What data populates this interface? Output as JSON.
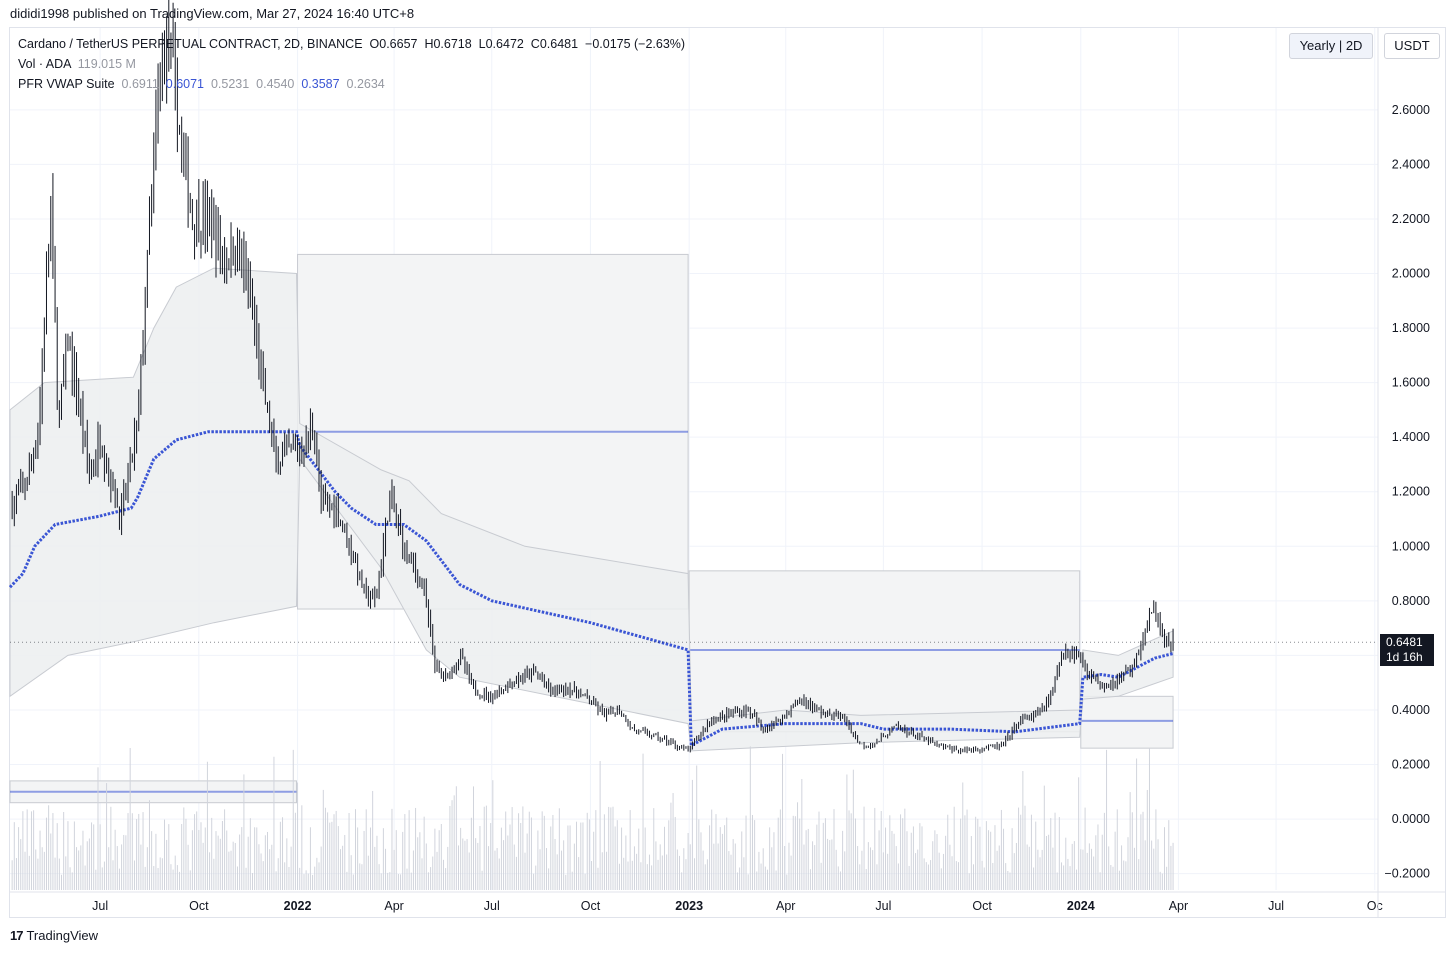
{
  "header": {
    "published_by": "dididi1998 published on TradingView.com, Mar 27, 2024 16:40 UTC+8"
  },
  "legend": {
    "symbol_line": "Cardano / TetherUS PERPETUAL CONTRACT, 2D, BINANCE",
    "ohlc": {
      "open_label": "O",
      "open": "0.6657",
      "high_label": "H",
      "high": "0.6718",
      "low_label": "L",
      "low": "0.6472",
      "close_label": "C",
      "close": "0.6481",
      "change": "−0.0175 (−2.63%)"
    },
    "volume": {
      "label": "Vol · ADA",
      "value": "119.015 M"
    },
    "indicator": {
      "label": "PFR VWAP Suite",
      "v1": "0.6911",
      "v2": "0.6071",
      "v3": "0.5231",
      "v4": "0.4540",
      "v5": "0.3587",
      "v6": "0.2634"
    }
  },
  "controls": {
    "period_button": "Yearly | 2D",
    "currency_button": "USDT"
  },
  "price_badge": {
    "price": "0.6481",
    "countdown": "1d 16h"
  },
  "footer": {
    "logo_text": "17",
    "brand": "TradingView"
  },
  "colors": {
    "vwap_line": "#3a55d4",
    "band_fill": "#eceef0",
    "box_fill": "#f3f4f5",
    "candle": "#131722",
    "volume": "#d1d4dc",
    "grid": "#f0f3fa"
  },
  "chart_data": {
    "type": "candlestick",
    "title": "Cardano / TetherUS PERPETUAL CONTRACT, 2D, BINANCE",
    "y_axis": {
      "ticks": [
        "2.6000",
        "2.4000",
        "2.2000",
        "2.0000",
        "1.8000",
        "1.6000",
        "1.4000",
        "1.2000",
        "1.0000",
        "0.8000",
        "0.6000",
        "0.4000",
        "0.2000",
        "0.0000",
        "−0.2000"
      ],
      "range": [
        -0.26,
        2.9
      ]
    },
    "x_axis": {
      "ticks": [
        {
          "label": "Jul",
          "date": "2021-07-01",
          "bold": false
        },
        {
          "label": "Oct",
          "date": "2021-10-01",
          "bold": false
        },
        {
          "label": "2022",
          "date": "2022-01-01",
          "bold": true
        },
        {
          "label": "Apr",
          "date": "2022-04-01",
          "bold": false
        },
        {
          "label": "Jul",
          "date": "2022-07-01",
          "bold": false
        },
        {
          "label": "Oct",
          "date": "2022-10-01",
          "bold": false
        },
        {
          "label": "2023",
          "date": "2023-01-01",
          "bold": true
        },
        {
          "label": "Apr",
          "date": "2023-04-01",
          "bold": false
        },
        {
          "label": "Jul",
          "date": "2023-07-01",
          "bold": false
        },
        {
          "label": "Oct",
          "date": "2023-10-01",
          "bold": false
        },
        {
          "label": "2024",
          "date": "2024-01-01",
          "bold": true
        },
        {
          "label": "Apr",
          "date": "2024-04-01",
          "bold": false
        },
        {
          "label": "Jul",
          "date": "2024-07-01",
          "bold": false
        },
        {
          "label": "Oc",
          "date": "2024-10-01",
          "bold": false
        }
      ],
      "range": [
        "2021-04-08",
        "2024-10-04"
      ]
    },
    "price_path": [
      [
        "2021-04-10",
        1.15
      ],
      [
        "2021-04-25",
        1.25
      ],
      [
        "2021-05-05",
        1.45
      ],
      [
        "2021-05-16",
        2.25
      ],
      [
        "2021-05-23",
        1.45
      ],
      [
        "2021-06-01",
        1.75
      ],
      [
        "2021-06-10",
        1.55
      ],
      [
        "2021-06-22",
        1.25
      ],
      [
        "2021-07-01",
        1.4
      ],
      [
        "2021-07-20",
        1.1
      ],
      [
        "2021-08-05",
        1.45
      ],
      [
        "2021-08-15",
        2.1
      ],
      [
        "2021-08-25",
        2.7
      ],
      [
        "2021-09-02",
        2.9
      ],
      [
        "2021-09-15",
        2.45
      ],
      [
        "2021-09-25",
        2.2
      ],
      [
        "2021-10-10",
        2.2
      ],
      [
        "2021-10-25",
        2.05
      ],
      [
        "2021-11-07",
        2.1
      ],
      [
        "2021-11-20",
        1.85
      ],
      [
        "2021-12-01",
        1.55
      ],
      [
        "2021-12-12",
        1.3
      ],
      [
        "2021-12-25",
        1.35
      ],
      [
        "2022-01-05",
        1.35
      ],
      [
        "2022-01-16",
        1.45
      ],
      [
        "2022-01-23",
        1.15
      ],
      [
        "2022-02-05",
        1.15
      ],
      [
        "2022-02-15",
        1.05
      ],
      [
        "2022-02-25",
        0.92
      ],
      [
        "2022-03-05",
        0.82
      ],
      [
        "2022-03-15",
        0.8
      ],
      [
        "2022-03-28",
        1.18
      ],
      [
        "2022-04-10",
        1.0
      ],
      [
        "2022-04-28",
        0.85
      ],
      [
        "2022-05-10",
        0.55
      ],
      [
        "2022-05-20",
        0.52
      ],
      [
        "2022-06-01",
        0.6
      ],
      [
        "2022-06-15",
        0.47
      ],
      [
        "2022-07-01",
        0.45
      ],
      [
        "2022-07-20",
        0.5
      ],
      [
        "2022-08-10",
        0.54
      ],
      [
        "2022-08-25",
        0.47
      ],
      [
        "2022-09-10",
        0.48
      ],
      [
        "2022-09-25",
        0.45
      ],
      [
        "2022-10-15",
        0.38
      ],
      [
        "2022-10-28",
        0.4
      ],
      [
        "2022-11-09",
        0.33
      ],
      [
        "2022-11-25",
        0.31
      ],
      [
        "2022-12-15",
        0.28
      ],
      [
        "2022-12-31",
        0.25
      ],
      [
        "2023-01-20",
        0.36
      ],
      [
        "2023-02-10",
        0.39
      ],
      [
        "2023-02-25",
        0.4
      ],
      [
        "2023-03-10",
        0.33
      ],
      [
        "2023-03-25",
        0.36
      ],
      [
        "2023-04-15",
        0.44
      ],
      [
        "2023-05-05",
        0.39
      ],
      [
        "2023-05-25",
        0.37
      ],
      [
        "2023-06-10",
        0.27
      ],
      [
        "2023-06-25",
        0.28
      ],
      [
        "2023-07-12",
        0.34
      ],
      [
        "2023-07-30",
        0.31
      ],
      [
        "2023-08-20",
        0.27
      ],
      [
        "2023-09-10",
        0.25
      ],
      [
        "2023-10-01",
        0.26
      ],
      [
        "2023-10-20",
        0.27
      ],
      [
        "2023-11-05",
        0.36
      ],
      [
        "2023-11-20",
        0.38
      ],
      [
        "2023-12-05",
        0.45
      ],
      [
        "2023-12-15",
        0.62
      ],
      [
        "2023-12-28",
        0.61
      ],
      [
        "2024-01-10",
        0.53
      ],
      [
        "2024-01-22",
        0.49
      ],
      [
        "2024-02-05",
        0.51
      ],
      [
        "2024-02-20",
        0.57
      ],
      [
        "2024-03-05",
        0.74
      ],
      [
        "2024-03-12",
        0.76
      ],
      [
        "2024-03-20",
        0.64
      ],
      [
        "2024-03-27",
        0.6481
      ]
    ],
    "vwap_line": [
      [
        "2021-04-08",
        0.85
      ],
      [
        "2021-04-20",
        0.9
      ],
      [
        "2021-05-01",
        1.0
      ],
      [
        "2021-05-20",
        1.08
      ],
      [
        "2021-06-30",
        1.11
      ],
      [
        "2021-07-30",
        1.14
      ],
      [
        "2021-08-05",
        1.18
      ],
      [
        "2021-08-20",
        1.32
      ],
      [
        "2021-09-10",
        1.39
      ],
      [
        "2021-10-10",
        1.42
      ],
      [
        "2021-12-31",
        1.42
      ],
      [
        "2022-01-03",
        1.37
      ],
      [
        "2022-02-05",
        1.2
      ],
      [
        "2022-02-20",
        1.14
      ],
      [
        "2022-03-15",
        1.08
      ],
      [
        "2022-04-10",
        1.08
      ],
      [
        "2022-05-01",
        1.02
      ],
      [
        "2022-06-01",
        0.86
      ],
      [
        "2022-07-01",
        0.8
      ],
      [
        "2022-10-01",
        0.72
      ],
      [
        "2022-12-31",
        0.62
      ],
      [
        "2023-01-03",
        0.27
      ],
      [
        "2023-02-01",
        0.33
      ],
      [
        "2023-04-01",
        0.35
      ],
      [
        "2023-06-10",
        0.35
      ],
      [
        "2023-07-01",
        0.33
      ],
      [
        "2023-09-01",
        0.33
      ],
      [
        "2023-11-01",
        0.32
      ],
      [
        "2023-12-31",
        0.35
      ],
      [
        "2024-01-03",
        0.52
      ],
      [
        "2024-01-20",
        0.53
      ],
      [
        "2024-02-05",
        0.52
      ],
      [
        "2024-03-10",
        0.59
      ],
      [
        "2024-03-27",
        0.607
      ]
    ],
    "vwap_upper_band": [
      [
        "2021-04-08",
        1.5
      ],
      [
        "2021-05-10",
        1.6
      ],
      [
        "2021-08-01",
        1.62
      ],
      [
        "2021-08-20",
        1.8
      ],
      [
        "2021-09-10",
        1.95
      ],
      [
        "2021-10-15",
        2.02
      ],
      [
        "2021-12-31",
        2.0
      ],
      [
        "2022-01-03",
        1.45
      ],
      [
        "2022-03-20",
        1.28
      ],
      [
        "2022-04-15",
        1.24
      ],
      [
        "2022-05-15",
        1.12
      ],
      [
        "2022-08-01",
        1.0
      ],
      [
        "2022-12-31",
        0.9
      ],
      [
        "2023-01-03",
        0.36
      ],
      [
        "2023-04-01",
        0.4
      ],
      [
        "2023-06-10",
        0.38
      ],
      [
        "2023-12-31",
        0.4
      ],
      [
        "2024-01-03",
        0.62
      ],
      [
        "2024-02-05",
        0.6
      ],
      [
        "2024-03-27",
        0.69
      ]
    ],
    "vwap_lower_band": [
      [
        "2021-04-08",
        0.45
      ],
      [
        "2021-06-01",
        0.6
      ],
      [
        "2021-08-01",
        0.65
      ],
      [
        "2021-10-15",
        0.72
      ],
      [
        "2021-12-31",
        0.78
      ],
      [
        "2022-01-03",
        1.32
      ],
      [
        "2022-03-20",
        0.92
      ],
      [
        "2022-05-01",
        0.62
      ],
      [
        "2022-06-01",
        0.52
      ],
      [
        "2022-12-31",
        0.35
      ],
      [
        "2023-01-03",
        0.25
      ],
      [
        "2023-06-10",
        0.28
      ],
      [
        "2023-12-31",
        0.3
      ],
      [
        "2024-01-03",
        0.44
      ],
      [
        "2024-02-05",
        0.45
      ],
      [
        "2024-03-27",
        0.52
      ]
    ],
    "yearly_levels": [
      {
        "start": "2021-04-08",
        "end": "2021-12-31",
        "vwap": 0.1,
        "upper": 0.14,
        "lower": 0.06
      },
      {
        "start": "2022-01-01",
        "end": "2022-12-31",
        "vwap": 1.42,
        "upper": 2.07,
        "lower": 0.77
      },
      {
        "start": "2023-01-01",
        "end": "2023-12-31",
        "vwap": 0.62,
        "upper": 0.91,
        "lower": 0.32
      },
      {
        "start": "2024-01-01",
        "end": "2024-03-27",
        "vwap": 0.36,
        "upper": 0.45,
        "lower": 0.26
      }
    ],
    "volume_scale_note": "relative"
  }
}
